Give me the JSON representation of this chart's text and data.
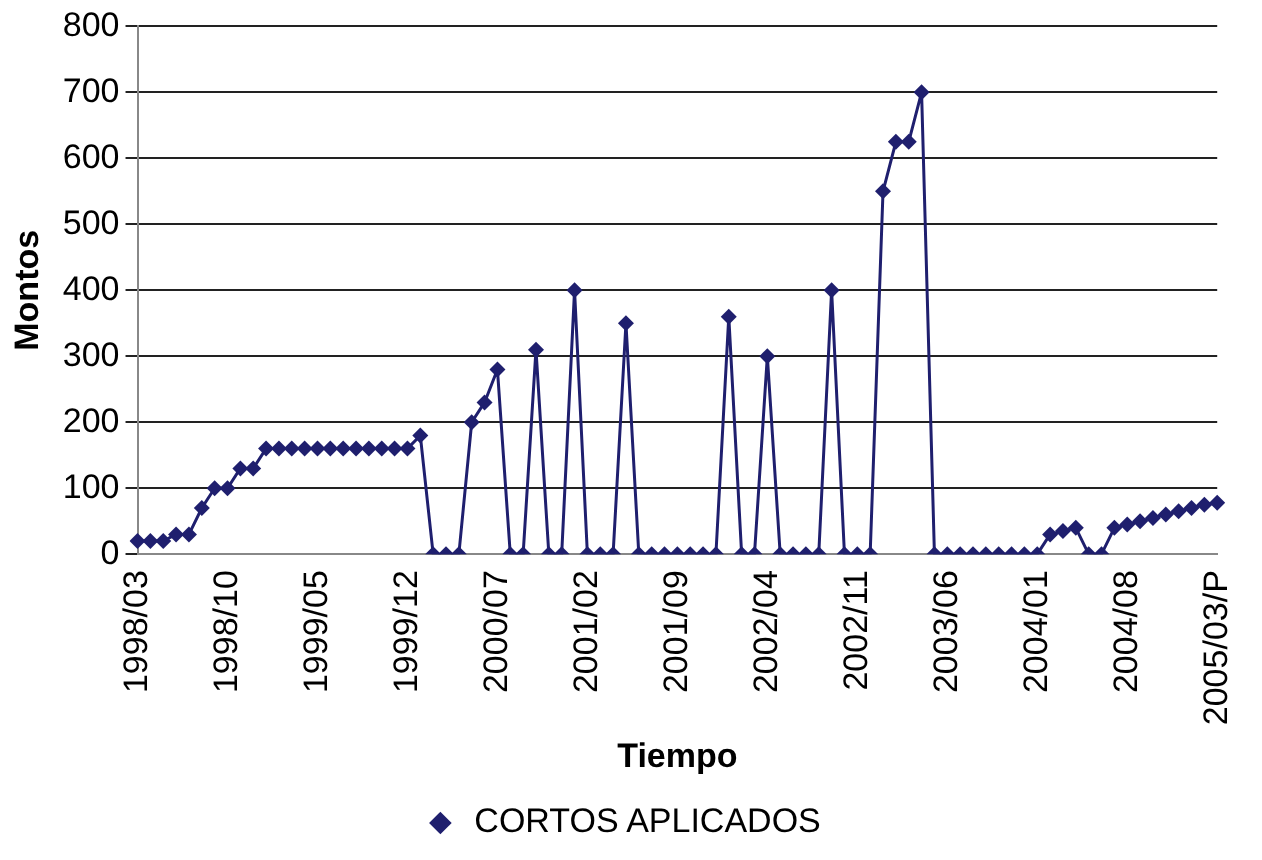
{
  "chart_data": {
    "type": "line",
    "xlabel": "Tiempo",
    "ylabel": "Montos",
    "categories": [
      "1998/03",
      null,
      null,
      null,
      null,
      null,
      null,
      "1998/10",
      null,
      null,
      null,
      null,
      null,
      null,
      "1999/05",
      null,
      null,
      null,
      null,
      null,
      null,
      "1999/12",
      null,
      null,
      null,
      null,
      null,
      null,
      "2000/07",
      null,
      null,
      null,
      null,
      null,
      null,
      "2001/02",
      null,
      null,
      null,
      null,
      null,
      null,
      "2001/09",
      null,
      null,
      null,
      null,
      null,
      null,
      "2002/04",
      null,
      null,
      null,
      null,
      null,
      null,
      "2002/11",
      null,
      null,
      null,
      null,
      null,
      null,
      "2003/06",
      null,
      null,
      null,
      null,
      null,
      null,
      "2004/01",
      null,
      null,
      null,
      null,
      null,
      null,
      "2004/08",
      null,
      null,
      null,
      null,
      null,
      null,
      "2005/03/P"
    ],
    "series": [
      {
        "name": "CORTOS APLICADOS",
        "color": "#1f1f6e",
        "values": [
          20,
          20,
          20,
          30,
          30,
          70,
          100,
          100,
          130,
          130,
          160,
          160,
          160,
          160,
          160,
          160,
          160,
          160,
          160,
          160,
          160,
          160,
          180,
          0,
          0,
          0,
          200,
          230,
          280,
          0,
          0,
          310,
          0,
          0,
          400,
          0,
          0,
          0,
          350,
          0,
          0,
          0,
          0,
          0,
          0,
          0,
          360,
          0,
          0,
          300,
          0,
          0,
          0,
          0,
          400,
          0,
          0,
          0,
          550,
          625,
          625,
          700,
          0,
          0,
          0,
          0,
          0,
          0,
          0,
          0,
          0,
          30,
          35,
          40,
          0,
          0,
          40,
          45,
          50,
          55,
          60,
          65,
          70,
          75,
          78
        ]
      }
    ],
    "ylim": [
      0,
      800
    ],
    "yticks": [
      0,
      100,
      200,
      300,
      400,
      500,
      600,
      700,
      800
    ],
    "grid": "y",
    "legend": "bottom",
    "marker": "diamond",
    "line_style": "solid"
  }
}
